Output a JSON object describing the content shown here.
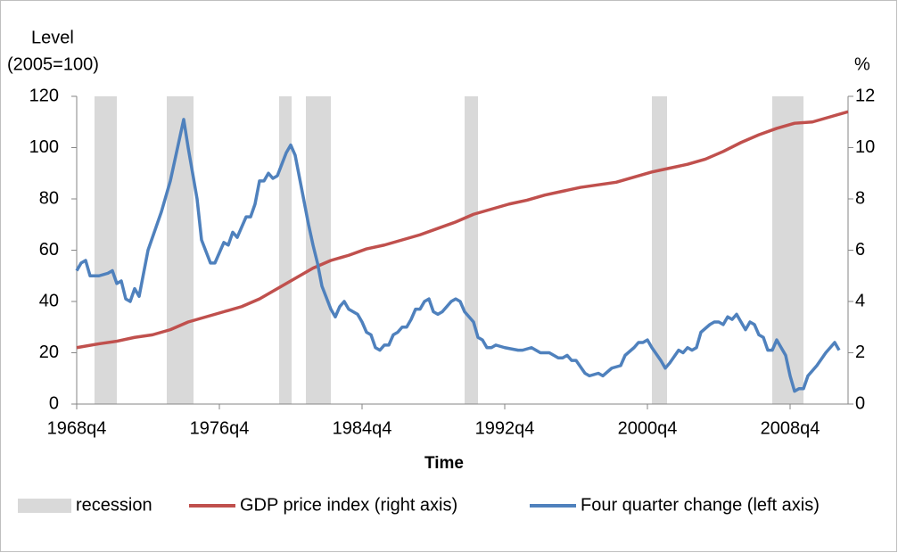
{
  "chart_data": {
    "type": "line",
    "y_title_line1": "Level",
    "y_title_line2": "(2005=100)",
    "y2_title": "%",
    "x_title": "Time",
    "xlim": [
      1968.75,
      2012.0
    ],
    "xticks": [
      {
        "value": 1968.75,
        "label": "1968q4"
      },
      {
        "value": 1976.75,
        "label": "1976q4"
      },
      {
        "value": 1984.75,
        "label": "1984q4"
      },
      {
        "value": 1992.75,
        "label": "1992q4"
      },
      {
        "value": 2000.75,
        "label": "2000q4"
      },
      {
        "value": 2008.75,
        "label": "2008q4"
      }
    ],
    "ylim": [
      0,
      120
    ],
    "yticks": [
      0,
      20,
      40,
      60,
      80,
      100,
      120
    ],
    "y2lim": [
      0,
      12
    ],
    "y2ticks": [
      0,
      2,
      4,
      6,
      8,
      10,
      12
    ],
    "recessions": {
      "name": "recession",
      "color": "#d9d9d9",
      "ranges": [
        [
          1969.75,
          1971.0
        ],
        [
          1973.8,
          1975.3
        ],
        [
          1980.1,
          1980.8
        ],
        [
          1981.6,
          1983.0
        ],
        [
          1990.5,
          1991.25
        ],
        [
          2001.0,
          2001.85
        ],
        [
          2007.75,
          2009.5
        ]
      ]
    },
    "series": [
      {
        "name": "GDP price index (right axis)",
        "color": "#c0504d",
        "axis": "y2",
        "x": [
          1968.75,
          1970,
          1971,
          1972,
          1973,
          1974,
          1975,
          1976,
          1977,
          1978,
          1979,
          1980,
          1981,
          1982,
          1983,
          1984,
          1985,
          1986,
          1987,
          1988,
          1989,
          1990,
          1991,
          1992,
          1993,
          1994,
          1995,
          1996,
          1997,
          1998,
          1999,
          2000,
          2001,
          2002,
          2003,
          2004,
          2005,
          2006,
          2007,
          2008,
          2009,
          2010,
          2011,
          2012
        ],
        "values": [
          2.2,
          2.35,
          2.45,
          2.6,
          2.7,
          2.9,
          3.2,
          3.4,
          3.6,
          3.8,
          4.1,
          4.5,
          4.9,
          5.3,
          5.6,
          5.8,
          6.05,
          6.2,
          6.4,
          6.6,
          6.85,
          7.1,
          7.4,
          7.6,
          7.8,
          7.95,
          8.15,
          8.3,
          8.45,
          8.55,
          8.65,
          8.85,
          9.05,
          9.2,
          9.35,
          9.55,
          9.85,
          10.2,
          10.5,
          10.75,
          10.95,
          11.0,
          11.2,
          11.4
        ]
      },
      {
        "name": "Four quarter change (left axis)",
        "color": "#4f81bd",
        "axis": "y",
        "x": [
          1968.75,
          1969.0,
          1969.25,
          1969.5,
          1970.0,
          1970.5,
          1970.75,
          1971.0,
          1971.25,
          1971.5,
          1971.75,
          1972.0,
          1972.25,
          1972.75,
          1973.5,
          1974.0,
          1974.5,
          1974.75,
          1975.0,
          1975.5,
          1975.75,
          1976.25,
          1976.5,
          1977.0,
          1977.25,
          1977.5,
          1977.75,
          1978.25,
          1978.5,
          1978.75,
          1979.0,
          1979.25,
          1979.5,
          1979.75,
          1980.0,
          1980.5,
          1980.75,
          1981.0,
          1981.25,
          1981.75,
          1982.0,
          1982.25,
          1982.5,
          1983.0,
          1983.25,
          1983.5,
          1983.75,
          1984.0,
          1984.5,
          1984.75,
          1985.0,
          1985.25,
          1985.5,
          1985.75,
          1986.0,
          1986.25,
          1986.5,
          1986.75,
          1987.0,
          1987.25,
          1987.5,
          1987.75,
          1988.0,
          1988.25,
          1988.5,
          1988.75,
          1989.0,
          1989.25,
          1989.5,
          1989.75,
          1990.0,
          1990.25,
          1990.5,
          1990.75,
          1991.0,
          1991.25,
          1991.5,
          1991.75,
          1992.0,
          1992.25,
          1992.75,
          1993.5,
          1993.75,
          1994.25,
          1994.75,
          1995.25,
          1995.75,
          1996.0,
          1996.25,
          1996.5,
          1996.75,
          1997.25,
          1997.5,
          1998.0,
          1998.25,
          1998.75,
          1999.25,
          1999.5,
          2000.0,
          2000.25,
          2000.5,
          2000.75,
          2001.0,
          2001.5,
          2001.75,
          2002.0,
          2002.5,
          2002.75,
          2003.0,
          2003.25,
          2003.5,
          2003.75,
          2004.25,
          2004.5,
          2004.75,
          2005.0,
          2005.25,
          2005.5,
          2005.75,
          2006.25,
          2006.5,
          2006.75,
          2007.0,
          2007.25,
          2007.5,
          2007.75,
          2008.0,
          2008.25,
          2008.5,
          2008.75,
          2009.0,
          2009.25,
          2009.5,
          2009.75,
          2010.25,
          2010.75,
          2011.25,
          2011.5
        ],
        "values": [
          52,
          55,
          56,
          50,
          50,
          51,
          52,
          47,
          48,
          41,
          40,
          45,
          42,
          60,
          75,
          87,
          103,
          111,
          100,
          80,
          64,
          55,
          55,
          63,
          62,
          67,
          65,
          73,
          73,
          78,
          87,
          87,
          90,
          88,
          89,
          98,
          101,
          97,
          88,
          70,
          62,
          55,
          46,
          37,
          34,
          38,
          40,
          37,
          35,
          32,
          28,
          27,
          22,
          21,
          23,
          23,
          27,
          28,
          30,
          30,
          33,
          37,
          37,
          40,
          41,
          36,
          35,
          36,
          38,
          40,
          41,
          40,
          36,
          34,
          32,
          26,
          25,
          22,
          22,
          23,
          22,
          21,
          21,
          22,
          20,
          20,
          18,
          18,
          19,
          17,
          17,
          12,
          11,
          12,
          11,
          14,
          15,
          19,
          22,
          24,
          24,
          25,
          22,
          17,
          14,
          16,
          21,
          20,
          22,
          21,
          22,
          28,
          31,
          32,
          32,
          31,
          34,
          33,
          35,
          29,
          32,
          31,
          27,
          26,
          21,
          21,
          25,
          22,
          19,
          11,
          5,
          6,
          6,
          11,
          15,
          20,
          24,
          21
        ]
      }
    ]
  }
}
